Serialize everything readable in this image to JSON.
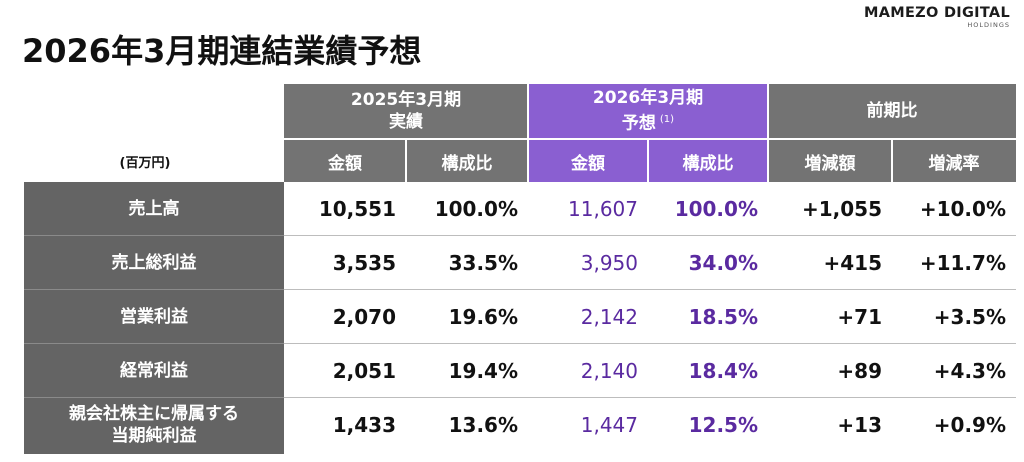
{
  "title": "2026年3月期連結業績予想",
  "logo": {
    "main": "MAMEZO DIGITAL",
    "sub": "HOLDINGS"
  },
  "unit": "(百万円)",
  "header": {
    "group_2025_line1": "2025年3月期",
    "group_2025_line2": "実績",
    "group_2026_line1": "2026年3月期",
    "group_2026_line2": "予想",
    "group_2026_note": "(1)",
    "group_yoy": "前期比",
    "amount": "金額",
    "ratio": "構成比",
    "change": "増減額",
    "change_rate": "増減率"
  },
  "rows": [
    {
      "label_line1": "売上高",
      "label_line2": "",
      "a2025": "10,551",
      "r2025": "100.0%",
      "a2026": "11,607",
      "r2026": "100.0%",
      "diff": "+1,055",
      "rate": "+10.0%"
    },
    {
      "label_line1": "売上総利益",
      "label_line2": "",
      "a2025": "3,535",
      "r2025": "33.5%",
      "a2026": "3,950",
      "r2026": "34.0%",
      "diff": "+415",
      "rate": "+11.7%"
    },
    {
      "label_line1": "営業利益",
      "label_line2": "",
      "a2025": "2,070",
      "r2025": "19.6%",
      "a2026": "2,142",
      "r2026": "18.5%",
      "diff": "+71",
      "rate": "+3.5%"
    },
    {
      "label_line1": "経常利益",
      "label_line2": "",
      "a2025": "2,051",
      "r2025": "19.4%",
      "a2026": "2,140",
      "r2026": "18.4%",
      "diff": "+89",
      "rate": "+4.3%"
    },
    {
      "label_line1": "親会社株主に帰属する",
      "label_line2": "当期純利益",
      "a2025": "1,433",
      "r2025": "13.6%",
      "a2026": "1,447",
      "r2026": "12.5%",
      "diff": "+13",
      "rate": "+0.9%"
    }
  ],
  "colors": {
    "header_gray": "#737373",
    "header_purple": "#8a5fd1",
    "label_gray": "#646464",
    "forecast_text": "#5a2aa0"
  }
}
